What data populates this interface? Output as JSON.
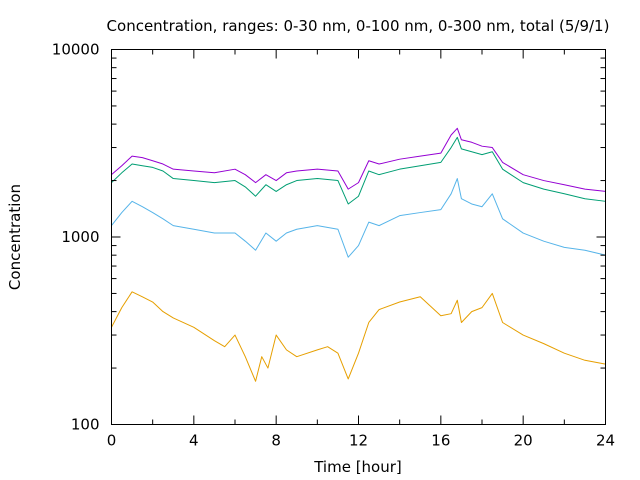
{
  "chart_data": {
    "type": "line",
    "title": "Concentration, ranges: 0-30 nm, 0-100 nm, 0-300 nm, total (5/9/1)",
    "xlabel": "Time [hour]",
    "ylabel": "Concentration",
    "xlim": [
      0,
      24
    ],
    "ylim": [
      100,
      10000
    ],
    "yscale": "log",
    "grid": false,
    "legend": "none",
    "x_ticks": [
      "0",
      "4",
      "8",
      "12",
      "16",
      "20",
      "24"
    ],
    "y_ticks": [
      "100",
      "1000",
      "10000"
    ],
    "series": [
      {
        "color": "#9400d3",
        "x": [
          0,
          0.5,
          1,
          1.5,
          2,
          2.5,
          3,
          4,
          5,
          6,
          6.5,
          7,
          7.5,
          8,
          8.5,
          9,
          10,
          11,
          11.5,
          12,
          12.5,
          13,
          14,
          15,
          16,
          16.5,
          16.8,
          17,
          17.5,
          18,
          18.5,
          19,
          20,
          21,
          22,
          23,
          24
        ],
        "y": [
          2150,
          2400,
          2700,
          2650,
          2550,
          2450,
          2300,
          2250,
          2200,
          2300,
          2150,
          1950,
          2150,
          2000,
          2200,
          2250,
          2300,
          2250,
          1800,
          1950,
          2550,
          2450,
          2600,
          2700,
          2800,
          3500,
          3800,
          3300,
          3200,
          3050,
          3000,
          2500,
          2150,
          2000,
          1900,
          1800,
          1750
        ]
      },
      {
        "color": "#009e73",
        "x": [
          0,
          0.5,
          1,
          1.5,
          2,
          2.5,
          3,
          4,
          5,
          6,
          6.5,
          7,
          7.5,
          8,
          8.5,
          9,
          10,
          11,
          11.5,
          12,
          12.5,
          13,
          14,
          15,
          16,
          16.5,
          16.8,
          17,
          17.5,
          18,
          18.5,
          19,
          20,
          21,
          22,
          23,
          24
        ],
        "y": [
          1950,
          2200,
          2450,
          2400,
          2350,
          2250,
          2050,
          2000,
          1950,
          2000,
          1850,
          1650,
          1900,
          1750,
          1900,
          2000,
          2050,
          2000,
          1500,
          1650,
          2250,
          2150,
          2300,
          2400,
          2500,
          3000,
          3400,
          2950,
          2850,
          2750,
          2850,
          2300,
          1950,
          1800,
          1700,
          1600,
          1550
        ]
      },
      {
        "color": "#56b4e9",
        "x": [
          0,
          0.5,
          1,
          1.5,
          2,
          2.5,
          3,
          4,
          5,
          6,
          6.5,
          7,
          7.5,
          8,
          8.5,
          9,
          10,
          11,
          11.5,
          12,
          12.5,
          13,
          14,
          15,
          16,
          16.5,
          16.8,
          17,
          17.5,
          18,
          18.5,
          19,
          20,
          21,
          22,
          23,
          24
        ],
        "y": [
          1150,
          1350,
          1550,
          1450,
          1350,
          1250,
          1150,
          1100,
          1050,
          1050,
          950,
          850,
          1050,
          950,
          1050,
          1100,
          1150,
          1100,
          780,
          900,
          1200,
          1150,
          1300,
          1350,
          1400,
          1700,
          2050,
          1600,
          1500,
          1450,
          1700,
          1250,
          1050,
          950,
          880,
          850,
          800
        ]
      },
      {
        "color": "#e69f00",
        "x": [
          0,
          0.5,
          1,
          1.5,
          2,
          2.5,
          3,
          4,
          5,
          5.5,
          6,
          6.5,
          7,
          7.3,
          7.6,
          8,
          8.5,
          9,
          10,
          10.5,
          11,
          11.5,
          12,
          12.5,
          13,
          14,
          15,
          16,
          16.5,
          16.8,
          17,
          17.5,
          18,
          18.5,
          19,
          20,
          21,
          22,
          23,
          24
        ],
        "y": [
          330,
          420,
          510,
          480,
          450,
          400,
          370,
          330,
          280,
          260,
          300,
          230,
          170,
          230,
          200,
          300,
          250,
          230,
          250,
          260,
          240,
          175,
          240,
          350,
          410,
          450,
          480,
          380,
          390,
          460,
          350,
          400,
          420,
          500,
          350,
          300,
          270,
          240,
          220,
          210
        ]
      }
    ]
  }
}
